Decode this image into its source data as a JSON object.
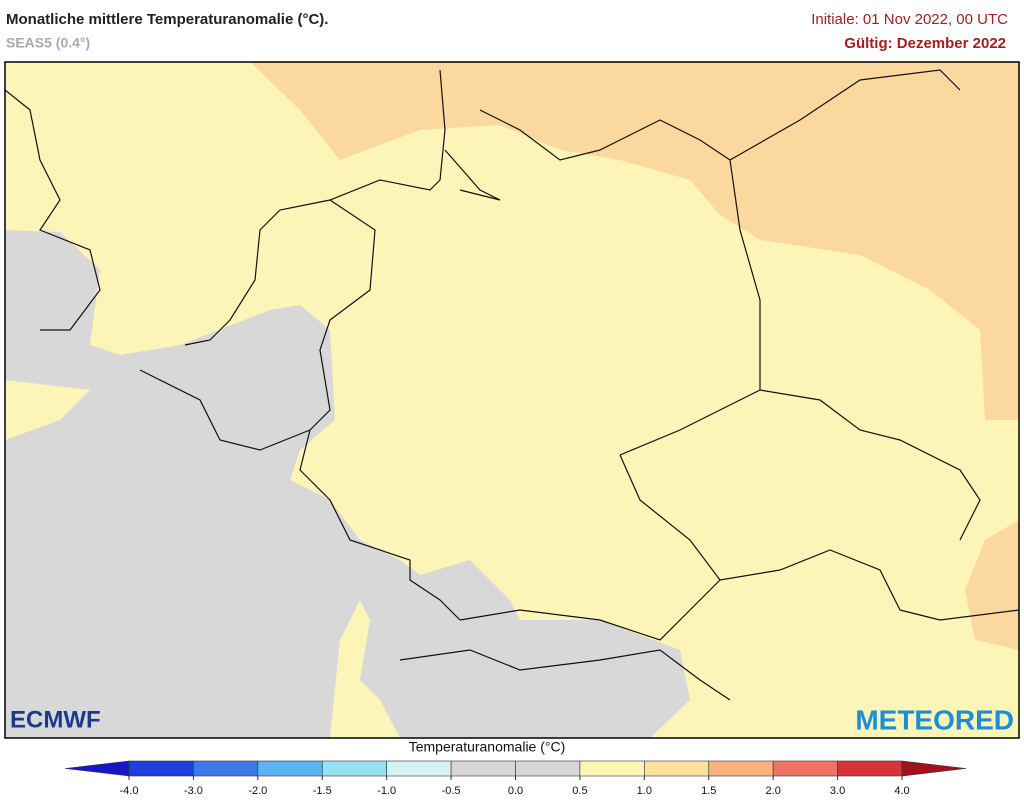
{
  "header": {
    "title": "Monatliche mittlere Temperaturanomalie (°C).",
    "subtitle": "SEAS5 (0.4°)",
    "initial": "Initiale: 01 Nov 2022, 00 UTC",
    "valid": "Gültig: Dezember 2022"
  },
  "logos": {
    "ecmwf": "ECMWF",
    "meteored": "METEORED"
  },
  "colorbar": {
    "label": "Temperaturanomalie (°C)",
    "ticks": [
      {
        "value": -4,
        "label": "-4.0"
      },
      {
        "value": -3,
        "label": "-3.0"
      },
      {
        "value": -2,
        "label": "-2.0"
      },
      {
        "value": -1.5,
        "label": "-1.5"
      },
      {
        "value": -1,
        "label": "-1.0"
      },
      {
        "value": -0.5,
        "label": "-0.5"
      },
      {
        "value": 0,
        "label": "0.0"
      },
      {
        "value": 0.5,
        "label": "0.5"
      },
      {
        "value": 1,
        "label": "1.0"
      },
      {
        "value": 1.5,
        "label": "1.5"
      },
      {
        "value": 2,
        "label": "2.0"
      },
      {
        "value": 3,
        "label": "3.0"
      },
      {
        "value": 4,
        "label": "4.0"
      }
    ],
    "colors": [
      "#1616c8",
      "#1f3fe0",
      "#3b78ea",
      "#5bb4f2",
      "#94e2f2",
      "#d6f3f3",
      "#d6d6d6",
      "#d6d6d6",
      "#fdf5b4",
      "#fde19e",
      "#f9b27c",
      "#f07262",
      "#d9333a",
      "#a3101e"
    ]
  }
}
